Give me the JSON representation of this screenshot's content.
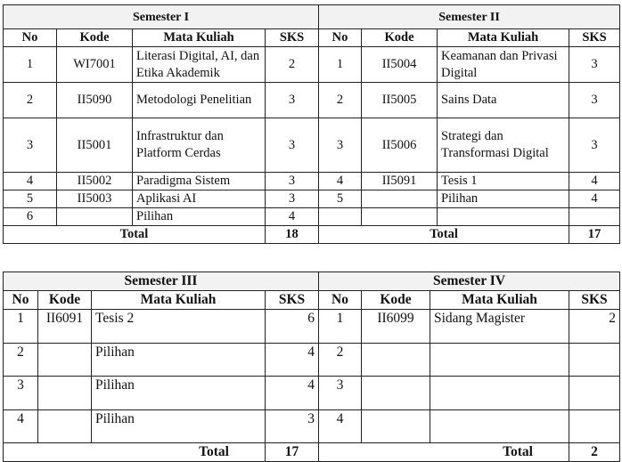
{
  "headers": {
    "no": "No",
    "kode": "Kode",
    "mk": "Mata Kuliah",
    "sks": "SKS",
    "total": "Total"
  },
  "table1": {
    "left": {
      "title": "Semester I",
      "rows": [
        {
          "no": "1",
          "kode": "WI7001",
          "mk": "Literasi Digital, AI, dan Etika Akademik",
          "sks": "2"
        },
        {
          "no": "2",
          "kode": "II5090",
          "mk": "Metodologi Penelitian",
          "sks": "3"
        },
        {
          "no": "3",
          "kode": "II5001",
          "mk": "Infrastruktur dan Platform Cerdas",
          "sks": "3"
        },
        {
          "no": "4",
          "kode": "II5002",
          "mk": "Paradigma Sistem",
          "sks": "3"
        },
        {
          "no": "5",
          "kode": "II5003",
          "mk": "Aplikasi AI",
          "sks": "3"
        },
        {
          "no": "6",
          "kode": "",
          "mk": "Pilihan",
          "sks": "4"
        }
      ],
      "total": "18"
    },
    "right": {
      "title": "Semester II",
      "rows": [
        {
          "no": "1",
          "kode": "II5004",
          "mk": "Keamanan dan Privasi Digital",
          "sks": "3"
        },
        {
          "no": "2",
          "kode": "II5005",
          "mk": "Sains Data",
          "sks": "3"
        },
        {
          "no": "3",
          "kode": "II5006",
          "mk": "Strategi dan Transformasi Digital",
          "sks": "3"
        },
        {
          "no": "4",
          "kode": "II5091",
          "mk": "Tesis 1",
          "sks": "4"
        },
        {
          "no": "5",
          "kode": "",
          "mk": "Pilihan",
          "sks": "4"
        },
        {
          "no": "",
          "kode": "",
          "mk": "",
          "sks": ""
        }
      ],
      "total": "17"
    }
  },
  "table2": {
    "left": {
      "title": "Semester III",
      "rows": [
        {
          "no": "1",
          "kode": "II6091",
          "mk": "Tesis 2",
          "sks": "6"
        },
        {
          "no": "2",
          "kode": "",
          "mk": "Pilihan",
          "sks": "4"
        },
        {
          "no": "3",
          "kode": "",
          "mk": "Pilihan",
          "sks": "4"
        },
        {
          "no": "4",
          "kode": "",
          "mk": "Pilihan",
          "sks": "3"
        }
      ],
      "total": "17"
    },
    "right": {
      "title": "Semester IV",
      "rows": [
        {
          "no": "1",
          "kode": "II6099",
          "mk": "Sidang Magister",
          "sks": "2"
        },
        {
          "no": "2",
          "kode": "",
          "mk": "",
          "sks": ""
        },
        {
          "no": "3",
          "kode": "",
          "mk": "",
          "sks": ""
        },
        {
          "no": "4",
          "kode": "",
          "mk": "",
          "sks": ""
        }
      ],
      "total": "2"
    }
  }
}
